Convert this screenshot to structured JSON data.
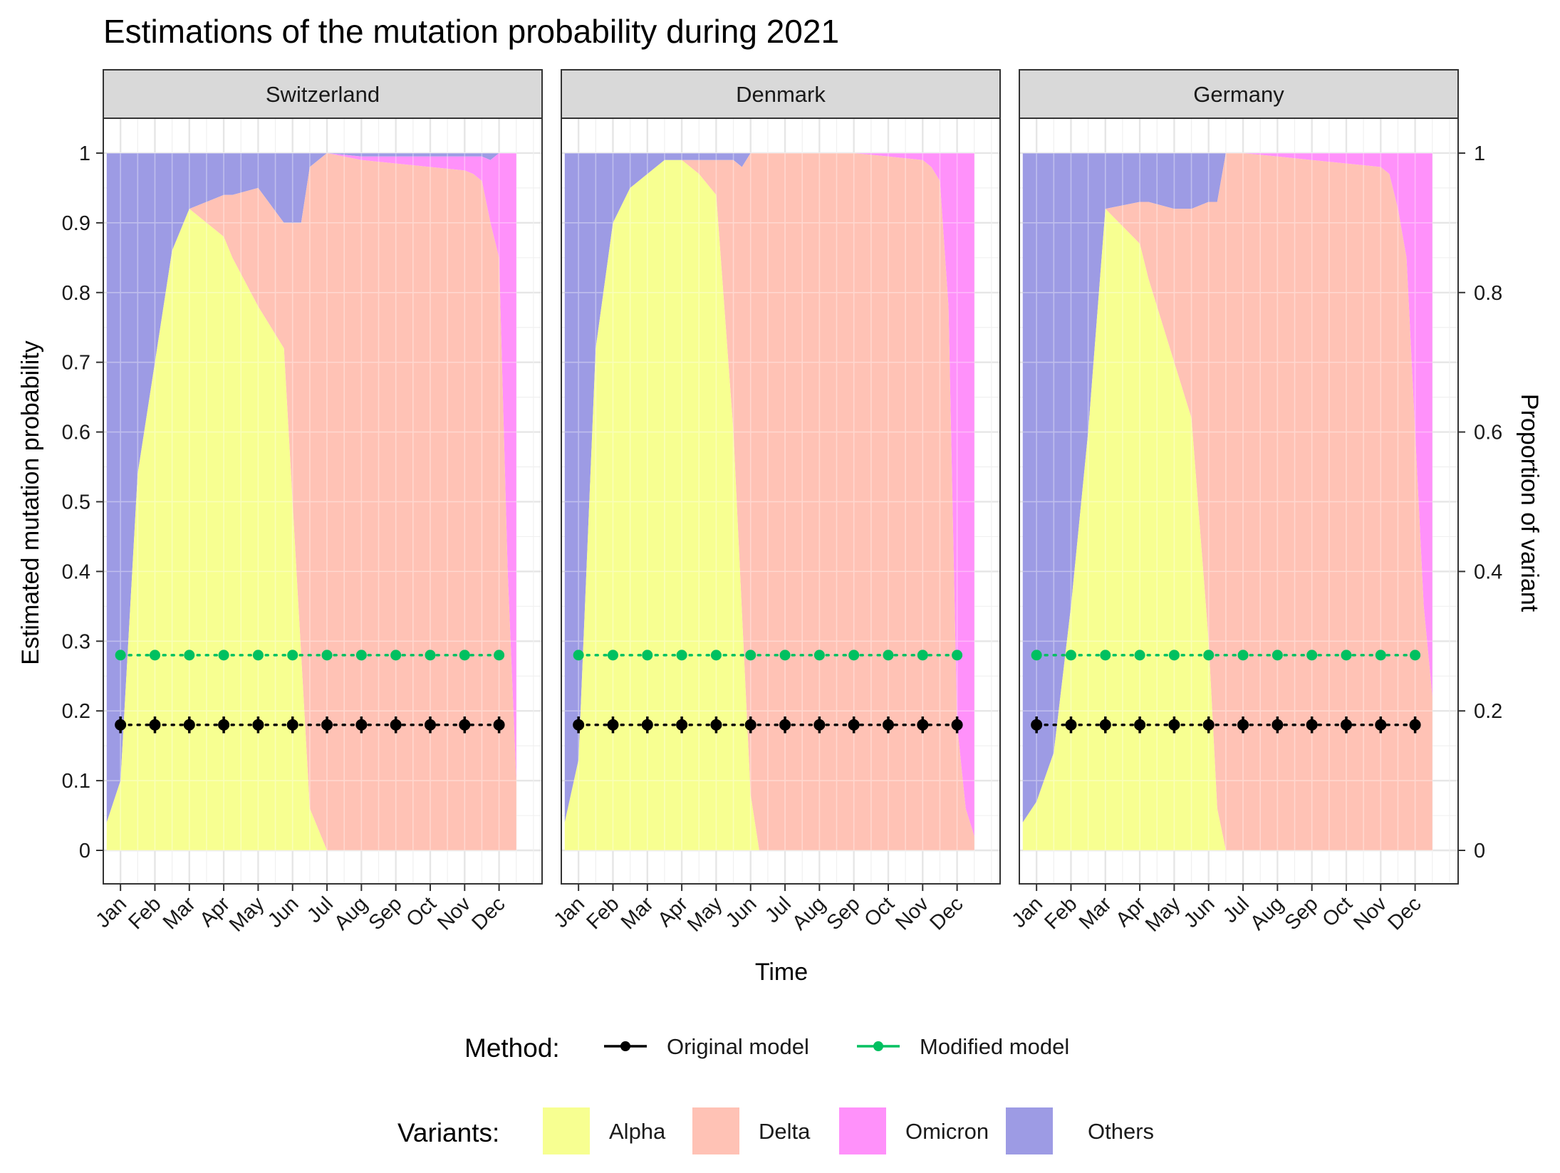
{
  "chart_data": {
    "type": "area",
    "title": "Estimations of the mutation probability during 2021",
    "xlabel": "Time",
    "ylabel": "Estimated mutation probability",
    "ylabel_right": "Proportion of variant",
    "months": [
      "Jan",
      "Feb",
      "Mar",
      "Apr",
      "May",
      "Jun",
      "Jul",
      "Aug",
      "Sep",
      "Oct",
      "Nov",
      "Dec"
    ],
    "ylim": [
      -0.048,
      1.05
    ],
    "xlim": [
      0.5,
      13.25
    ],
    "yticks_left": [
      "0",
      "0.1",
      "0.2",
      "0.3",
      "0.4",
      "0.5",
      "0.6",
      "0.7",
      "0.8",
      "0.9",
      "1"
    ],
    "yticks_right": [
      "0",
      "0.2",
      "0.4",
      "0.6",
      "0.8",
      "1"
    ],
    "grid": true,
    "legend_position": "bottom",
    "legend": {
      "method_title": "Method:",
      "variants_title": "Variants:",
      "methods": [
        {
          "name": "Original model",
          "color": "#000000"
        },
        {
          "name": "Modified model",
          "color": "#00c060"
        }
      ],
      "variants": [
        {
          "name": "Alpha",
          "color": "#f7ff91"
        },
        {
          "name": "Delta",
          "color": "#ffc2b5"
        },
        {
          "name": "Omicron",
          "color": "#ff91fa"
        },
        {
          "name": "Others",
          "color": "#9d9be4"
        }
      ]
    },
    "panels": [
      {
        "country": "Switzerland",
        "x": [
          0.6,
          1.0,
          1.5,
          2.0,
          2.5,
          3.0,
          4.0,
          4.25,
          5.0,
          5.75,
          6.0,
          6.25,
          6.5,
          7.0,
          8.0,
          9.0,
          10.0,
          11.0,
          11.25,
          11.5,
          11.75,
          12.0,
          12.25,
          12.5
        ],
        "alpha": [
          0.04,
          0.1,
          0.54,
          0.7,
          0.86,
          0.92,
          0.88,
          0.85,
          0.78,
          0.72,
          0.5,
          0.28,
          0.06,
          0.0,
          0.0,
          0.0,
          0.0,
          0.0,
          0.0,
          0.0,
          0.0,
          0.0,
          0.0,
          0.0
        ],
        "delta": [
          0.0,
          0.0,
          0.0,
          0.0,
          0.0,
          0.0,
          0.06,
          0.09,
          0.17,
          0.18,
          0.4,
          0.62,
          0.92,
          1.0,
          0.99,
          0.985,
          0.98,
          0.975,
          0.97,
          0.96,
          0.9,
          0.85,
          0.4,
          0.1
        ],
        "omicron": [
          0.0,
          0.0,
          0.0,
          0.0,
          0.0,
          0.0,
          0.0,
          0.0,
          0.0,
          0.0,
          0.0,
          0.0,
          0.0,
          0.0,
          0.005,
          0.01,
          0.015,
          0.02,
          0.025,
          0.035,
          0.09,
          0.15,
          0.6,
          0.9
        ],
        "original_model": [
          0.18,
          0.18,
          0.18,
          0.18,
          0.18,
          0.18,
          0.18,
          0.18,
          0.18,
          0.18,
          0.18,
          0.18
        ],
        "original_model_error": [
          0.012,
          0.012,
          0.012,
          0.012,
          0.012,
          0.012,
          0.012,
          0.012,
          0.012,
          0.012,
          0.012,
          0.012
        ],
        "modified_model": [
          0.28,
          0.28,
          0.28,
          0.28,
          0.28,
          0.28,
          0.28,
          0.28,
          0.28,
          0.28,
          0.28,
          0.28
        ]
      },
      {
        "country": "Denmark",
        "x": [
          0.6,
          1.0,
          1.5,
          2.0,
          2.5,
          3.0,
          3.5,
          4.0,
          4.5,
          5.0,
          5.5,
          5.75,
          6.0,
          6.25,
          6.5,
          7.0,
          8.0,
          9.0,
          10.0,
          11.0,
          11.25,
          11.5,
          11.75,
          12.0,
          12.25,
          12.5
        ],
        "alpha": [
          0.04,
          0.13,
          0.72,
          0.9,
          0.95,
          0.97,
          0.99,
          0.99,
          0.97,
          0.94,
          0.6,
          0.34,
          0.08,
          0.0,
          0.0,
          0.0,
          0.0,
          0.0,
          0.0,
          0.0,
          0.0,
          0.0,
          0.0,
          0.0,
          0.0,
          0.0
        ],
        "delta": [
          0.0,
          0.0,
          0.0,
          0.0,
          0.0,
          0.0,
          0.0,
          0.0,
          0.02,
          0.05,
          0.39,
          0.64,
          0.92,
          1.0,
          1.0,
          1.0,
          1.0,
          1.0,
          0.995,
          0.99,
          0.98,
          0.96,
          0.78,
          0.18,
          0.06,
          0.02
        ],
        "omicron": [
          0.0,
          0.0,
          0.0,
          0.0,
          0.0,
          0.0,
          0.0,
          0.0,
          0.0,
          0.0,
          0.0,
          0.0,
          0.0,
          0.0,
          0.0,
          0.0,
          0.0,
          0.0,
          0.005,
          0.01,
          0.02,
          0.04,
          0.22,
          0.82,
          0.94,
          0.98
        ],
        "original_model": [
          0.18,
          0.18,
          0.18,
          0.18,
          0.18,
          0.18,
          0.18,
          0.18,
          0.18,
          0.18,
          0.18,
          0.18
        ],
        "original_model_error": [
          0.012,
          0.012,
          0.012,
          0.012,
          0.012,
          0.012,
          0.012,
          0.012,
          0.012,
          0.012,
          0.012,
          0.012
        ],
        "modified_model": [
          0.28,
          0.28,
          0.28,
          0.28,
          0.28,
          0.28,
          0.28,
          0.28,
          0.28,
          0.28,
          0.28,
          0.28
        ]
      },
      {
        "country": "Germany",
        "x": [
          0.6,
          1.0,
          1.5,
          2.0,
          2.5,
          3.0,
          4.0,
          4.25,
          5.0,
          5.5,
          6.0,
          6.25,
          6.5,
          7.0,
          8.0,
          9.0,
          10.0,
          11.0,
          11.25,
          11.5,
          11.75,
          12.0,
          12.25,
          12.5
        ],
        "alpha": [
          0.04,
          0.07,
          0.14,
          0.35,
          0.6,
          0.92,
          0.87,
          0.82,
          0.7,
          0.62,
          0.3,
          0.06,
          0.0,
          0.0,
          0.0,
          0.0,
          0.0,
          0.0,
          0.0,
          0.0,
          0.0,
          0.0,
          0.0,
          0.0
        ],
        "delta": [
          0.0,
          0.0,
          0.0,
          0.0,
          0.0,
          0.0,
          0.06,
          0.11,
          0.22,
          0.3,
          0.63,
          0.87,
          1.0,
          1.0,
          0.995,
          0.99,
          0.985,
          0.98,
          0.97,
          0.92,
          0.85,
          0.6,
          0.35,
          0.22
        ],
        "omicron": [
          0.0,
          0.0,
          0.0,
          0.0,
          0.0,
          0.0,
          0.0,
          0.0,
          0.0,
          0.0,
          0.0,
          0.0,
          0.0,
          0.0,
          0.005,
          0.01,
          0.015,
          0.02,
          0.03,
          0.08,
          0.15,
          0.4,
          0.65,
          0.78
        ],
        "original_model": [
          0.18,
          0.18,
          0.18,
          0.18,
          0.18,
          0.18,
          0.18,
          0.18,
          0.18,
          0.18,
          0.18,
          0.18
        ],
        "original_model_error": [
          0.012,
          0.012,
          0.012,
          0.012,
          0.012,
          0.012,
          0.012,
          0.012,
          0.012,
          0.012,
          0.012,
          0.012
        ],
        "modified_model": [
          0.28,
          0.28,
          0.28,
          0.28,
          0.28,
          0.28,
          0.28,
          0.28,
          0.28,
          0.28,
          0.28,
          0.28
        ]
      }
    ]
  }
}
